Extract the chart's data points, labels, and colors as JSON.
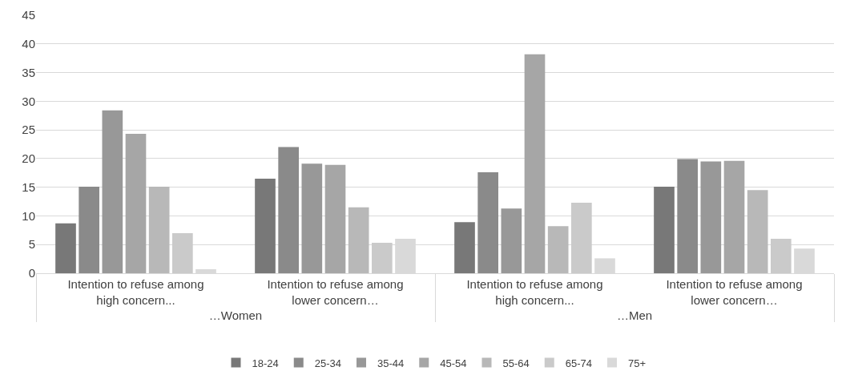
{
  "chart_data": {
    "type": "bar",
    "categories": [
      "Intention to refuse among high concern...",
      "Intention to refuse among lower concern…",
      "Intention to refuse among high concern...",
      "Intention to refuse among lower concern…"
    ],
    "annotations": [
      "…Women",
      "…Men"
    ],
    "series": [
      {
        "name": "18-24",
        "color": "#787878",
        "values": [
          8.7,
          16.5,
          8.9,
          15.1
        ]
      },
      {
        "name": "25-34",
        "color": "#8a8a8a",
        "values": [
          15.1,
          22.0,
          17.6,
          19.9
        ]
      },
      {
        "name": "35-44",
        "color": "#989898",
        "values": [
          28.4,
          19.1,
          11.3,
          19.5
        ]
      },
      {
        "name": "45-54",
        "color": "#a6a6a6",
        "values": [
          24.3,
          18.9,
          38.2,
          19.6
        ]
      },
      {
        "name": "55-64",
        "color": "#b8b8b8",
        "values": [
          15.1,
          11.5,
          8.2,
          14.5
        ]
      },
      {
        "name": "65-74",
        "color": "#cacaca",
        "values": [
          7.0,
          5.3,
          12.3,
          6.0
        ]
      },
      {
        "name": "75+",
        "color": "#d9d9d9",
        "values": [
          0.7,
          6.0,
          2.6,
          4.3
        ]
      }
    ],
    "ylim": [
      0,
      45
    ],
    "yticks": [
      0,
      5,
      10,
      15,
      20,
      25,
      30,
      35,
      40,
      45
    ],
    "grid": "y",
    "legend": "bottom"
  }
}
